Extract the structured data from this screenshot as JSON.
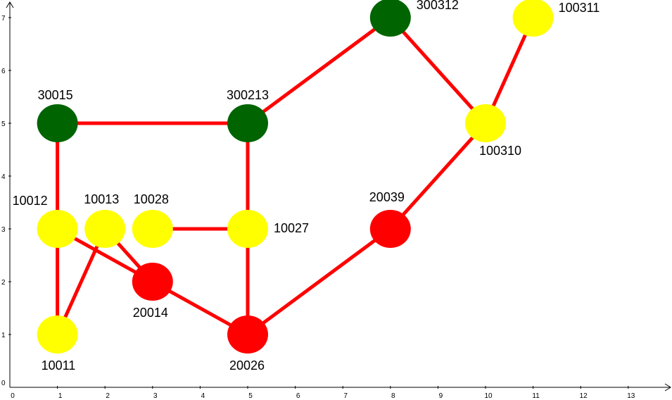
{
  "axes": {
    "x_ticks": [
      "0",
      "1",
      "2",
      "3",
      "4",
      "5",
      "6",
      "7",
      "8",
      "9",
      "10",
      "11",
      "12",
      "13"
    ],
    "y_ticks": [
      "1",
      "2",
      "3",
      "4",
      "5",
      "6",
      "7"
    ],
    "origin_label": "0",
    "xlim": [
      0,
      13.8
    ],
    "ylim": [
      0,
      7.3
    ]
  },
  "colors": {
    "edge": "#ff0000",
    "green": "#006400",
    "yellow": "#ffff00",
    "red": "#ff0000"
  },
  "nodes": [
    {
      "id": "30015",
      "label": "30015",
      "x": 1,
      "y": 5,
      "color": "green"
    },
    {
      "id": "300213",
      "label": "300213",
      "x": 5,
      "y": 5,
      "color": "green"
    },
    {
      "id": "300312",
      "label": "300312",
      "x": 8,
      "y": 7,
      "color": "green"
    },
    {
      "id": "100311",
      "label": "100311",
      "x": 11,
      "y": 7,
      "color": "yellow"
    },
    {
      "id": "100310",
      "label": "100310",
      "x": 10,
      "y": 5,
      "color": "yellow"
    },
    {
      "id": "10012",
      "label": "10012",
      "x": 1,
      "y": 3,
      "color": "yellow"
    },
    {
      "id": "10013",
      "label": "10013",
      "x": 2,
      "y": 3,
      "color": "yellow"
    },
    {
      "id": "10028",
      "label": "10028",
      "x": 3,
      "y": 3,
      "color": "yellow"
    },
    {
      "id": "10027",
      "label": "10027",
      "x": 5,
      "y": 3,
      "color": "yellow"
    },
    {
      "id": "20039",
      "label": "20039",
      "x": 8,
      "y": 3,
      "color": "red"
    },
    {
      "id": "20014",
      "label": "20014",
      "x": 3,
      "y": 2,
      "color": "red"
    },
    {
      "id": "10011",
      "label": "10011",
      "x": 1,
      "y": 1,
      "color": "yellow"
    },
    {
      "id": "20026",
      "label": "20026",
      "x": 5,
      "y": 1,
      "color": "red"
    }
  ],
  "edges": [
    [
      "30015",
      "300213"
    ],
    [
      "30015",
      "10012"
    ],
    [
      "300213",
      "300312"
    ],
    [
      "300213",
      "10027"
    ],
    [
      "300312",
      "100310"
    ],
    [
      "100311",
      "100310"
    ],
    [
      "100310",
      "20039"
    ],
    [
      "20039",
      "20026"
    ],
    [
      "10027",
      "20026"
    ],
    [
      "10028",
      "10027"
    ],
    [
      "10012",
      "10011"
    ],
    [
      "10012",
      "20014"
    ],
    [
      "10013",
      "20014"
    ],
    [
      "10013",
      "10011"
    ],
    [
      "20014",
      "20026"
    ]
  ]
}
